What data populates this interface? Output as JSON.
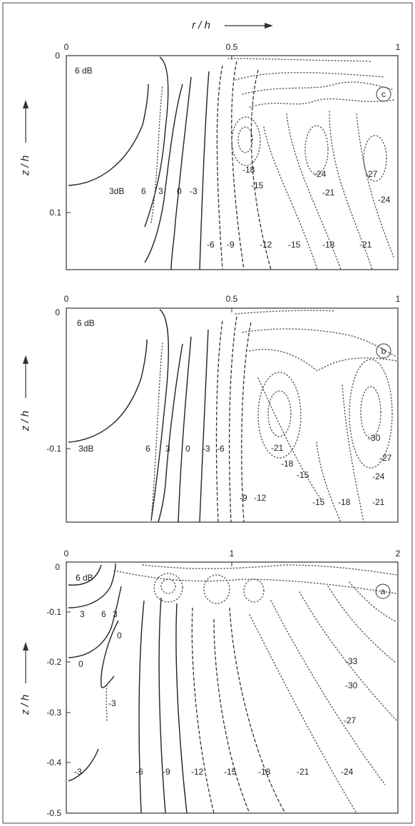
{
  "chart_data": [
    {
      "type": "contour",
      "panel_label": "c",
      "xlabel": "r / h",
      "ylabel": "z / h",
      "xlim": [
        0,
        1
      ],
      "ylim": [
        0,
        0.15
      ],
      "x_ticks": [
        "0",
        "0.5",
        "1"
      ],
      "y_ticks": [
        {
          "value": 0,
          "label": "0"
        },
        {
          "value": 0.1,
          "label": "0.1"
        }
      ],
      "contours": [
        {
          "label": "6 dB",
          "value": 6
        },
        {
          "label": "3dB",
          "value": 3
        },
        {
          "label": "6",
          "value": 6
        },
        {
          "label": "3",
          "value": 3
        },
        {
          "label": "0",
          "value": 0
        },
        {
          "label": "-3",
          "value": -3
        },
        {
          "label": "-6",
          "value": -6
        },
        {
          "label": "-9",
          "value": -9
        },
        {
          "label": "-12",
          "value": -12
        },
        {
          "label": "-15",
          "value": -15
        },
        {
          "label": "-18",
          "value": -18
        },
        {
          "label": "-21",
          "value": -21
        },
        {
          "label": "-15",
          "value": -15
        },
        {
          "label": "-18",
          "value": -18
        },
        {
          "label": "-24",
          "value": -24
        },
        {
          "label": "-21",
          "value": -21
        },
        {
          "label": "-27",
          "value": -27
        },
        {
          "label": "-24",
          "value": -24
        }
      ]
    },
    {
      "type": "contour",
      "panel_label": "b",
      "xlabel": "",
      "ylabel": "z / h",
      "xlim": [
        0,
        1
      ],
      "ylim": [
        0,
        -0.15
      ],
      "x_ticks": [
        "0",
        "0.5",
        "1"
      ],
      "y_ticks": [
        {
          "value": 0,
          "label": "0"
        },
        {
          "value": -0.1,
          "label": "-0.1"
        }
      ],
      "contours": [
        {
          "label": "6 dB",
          "value": 6
        },
        {
          "label": "3dB",
          "value": 3
        },
        {
          "label": "6",
          "value": 6
        },
        {
          "label": "3",
          "value": 3
        },
        {
          "label": "0",
          "value": 0
        },
        {
          "label": "-3",
          "value": -3
        },
        {
          "label": "-6",
          "value": -6
        },
        {
          "label": "-9",
          "value": -9
        },
        {
          "label": "-12",
          "value": -12
        },
        {
          "label": "-21",
          "value": -21
        },
        {
          "label": "-18",
          "value": -18
        },
        {
          "label": "-15",
          "value": -15
        },
        {
          "label": "-15",
          "value": -15
        },
        {
          "label": "-18",
          "value": -18
        },
        {
          "label": "-21",
          "value": -21
        },
        {
          "label": "-30",
          "value": -30
        },
        {
          "label": "-27",
          "value": -27
        },
        {
          "label": "-24",
          "value": -24
        }
      ]
    },
    {
      "type": "contour",
      "panel_label": "a",
      "xlabel": "",
      "ylabel": "z / h",
      "xlim": [
        0,
        2
      ],
      "ylim": [
        0,
        -0.5
      ],
      "x_ticks": [
        "0",
        "1",
        "2"
      ],
      "y_ticks": [
        {
          "value": 0,
          "label": "0"
        },
        {
          "value": -0.1,
          "label": "-0.1"
        },
        {
          "value": -0.2,
          "label": "-0.2"
        },
        {
          "value": -0.3,
          "label": "-0.3"
        },
        {
          "value": -0.4,
          "label": "-0.4"
        },
        {
          "value": -0.5,
          "label": "-0.5"
        }
      ],
      "contours": [
        {
          "label": "6 dB",
          "value": 6
        },
        {
          "label": "3",
          "value": 3
        },
        {
          "label": "6",
          "value": 6
        },
        {
          "label": "3",
          "value": 3
        },
        {
          "label": "0",
          "value": 0
        },
        {
          "label": "0",
          "value": 0
        },
        {
          "label": "-3",
          "value": -3
        },
        {
          "label": "-3",
          "value": -3
        },
        {
          "label": "-6",
          "value": -6
        },
        {
          "label": "-9",
          "value": -9
        },
        {
          "label": "-12",
          "value": -12
        },
        {
          "label": "-15",
          "value": -15
        },
        {
          "label": "-18",
          "value": -18
        },
        {
          "label": "-21",
          "value": -21
        },
        {
          "label": "-24",
          "value": -24
        },
        {
          "label": "-27",
          "value": -27
        },
        {
          "label": "-30",
          "value": -30
        },
        {
          "label": "-33",
          "value": -33
        }
      ]
    }
  ]
}
